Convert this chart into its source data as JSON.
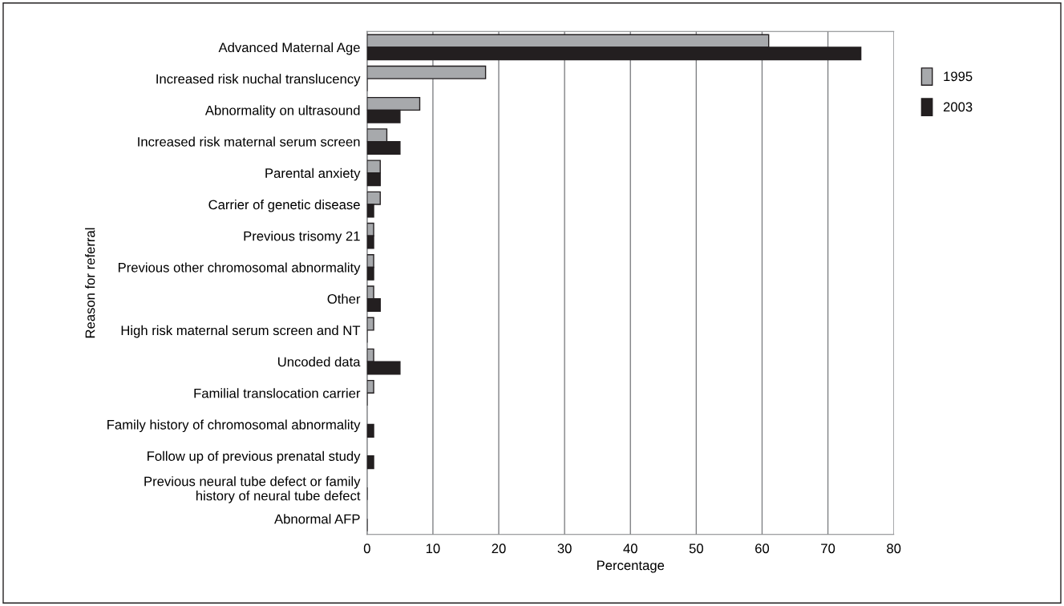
{
  "chart_data": {
    "type": "bar",
    "orientation": "horizontal",
    "xlabel": "Percentage",
    "ylabel": "Reason for referral",
    "categories": [
      "Advanced Maternal Age",
      "Increased risk nuchal translucency",
      "Abnormality on ultrasound",
      "Increased risk maternal serum screen",
      "Parental anxiety",
      "Carrier of genetic disease",
      "Previous trisomy 21",
      "Previous other chromosomal abnormality",
      "Other",
      "High risk maternal serum screen and NT",
      "Uncoded data",
      "Familial translocation carrier",
      "Family history of chromosomal abnormality",
      "Follow up of previous prenatal study",
      "Previous neural tube defect or family\nhistory of neural tube defect",
      "Abnormal AFP"
    ],
    "series": [
      {
        "name": "1995",
        "color": "#a7a9ac",
        "values": [
          61,
          18,
          8,
          3,
          2,
          2,
          1,
          1,
          1,
          1,
          1,
          1,
          0,
          0,
          0,
          0
        ]
      },
      {
        "name": "2003",
        "color": "#231f20",
        "values": [
          75,
          0,
          5,
          5,
          2,
          1,
          1,
          1,
          2,
          0,
          5,
          0,
          1,
          1,
          0,
          0
        ]
      }
    ],
    "xlim": [
      0,
      80
    ],
    "xticks": [
      0,
      10,
      20,
      30,
      40,
      50,
      60,
      70,
      80
    ],
    "grid": "x",
    "legend": "right"
  }
}
